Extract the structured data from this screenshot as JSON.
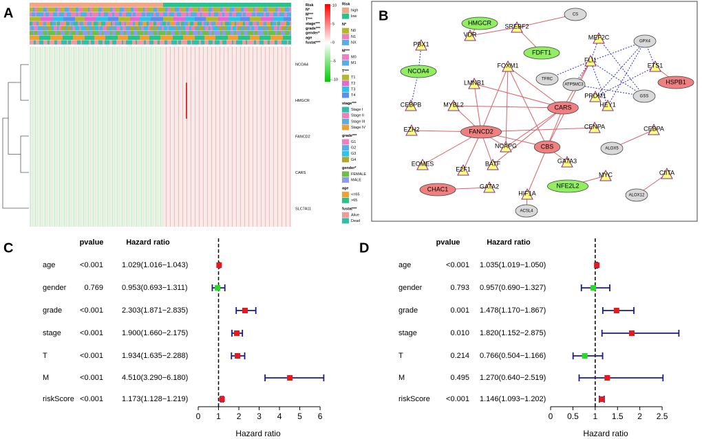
{
  "panel_labels": [
    "A",
    "B",
    "C",
    "D"
  ],
  "heatmap": {
    "annotation_rows": [
      "Risk",
      "N*",
      "M***",
      "T***",
      "stage***",
      "grade***",
      "gender*",
      "age",
      "fustat***"
    ],
    "genes": [
      "NCOA4",
      "HMGCR",
      "FANCD2",
      "CARS",
      "SLC7A11"
    ],
    "colorbar_ticks": [
      10,
      5,
      0,
      -5,
      -10
    ],
    "legend": [
      {
        "title": "Risk",
        "items": [
          {
            "label": "high",
            "color": "#f4a582"
          },
          {
            "label": "low",
            "color": "#29c28a"
          }
        ]
      },
      {
        "title": "N*",
        "items": [
          {
            "label": "N0",
            "color": "#b2b828"
          },
          {
            "label": "N1",
            "color": "#f07fbe"
          },
          {
            "label": "NX",
            "color": "#55aee8"
          }
        ]
      },
      {
        "title": "M***",
        "items": [
          {
            "label": "M0",
            "color": "#f07fbe"
          },
          {
            "label": "M1",
            "color": "#55aee8"
          }
        ]
      },
      {
        "title": "T***",
        "items": [
          {
            "label": "T1",
            "color": "#b2b828"
          },
          {
            "label": "T2",
            "color": "#e368d6"
          },
          {
            "label": "T3",
            "color": "#2bc3e8"
          },
          {
            "label": "T4",
            "color": "#5a8ff0"
          }
        ]
      },
      {
        "title": "stage***",
        "items": [
          {
            "label": "Stage I",
            "color": "#2dbfa8"
          },
          {
            "label": "Stage II",
            "color": "#f07fbe"
          },
          {
            "label": "Stage III",
            "color": "#55aee8"
          },
          {
            "label": "Stage IV",
            "color": "#f0a030"
          }
        ]
      },
      {
        "title": "grade***",
        "items": [
          {
            "label": "G1",
            "color": "#f07fbe"
          },
          {
            "label": "G2",
            "color": "#55aee8"
          },
          {
            "label": "G3",
            "color": "#2bc3e8"
          },
          {
            "label": "G4",
            "color": "#b2a828"
          }
        ]
      },
      {
        "title": "gender*",
        "items": [
          {
            "label": "FEMALE",
            "color": "#6dbf46"
          },
          {
            "label": "MALE",
            "color": "#8c9cf2"
          }
        ]
      },
      {
        "title": "age",
        "items": [
          {
            "label": "<=65",
            "color": "#f4a030"
          },
          {
            "label": ">65",
            "color": "#29c28a"
          }
        ]
      },
      {
        "title": "fustat***",
        "items": [
          {
            "label": "Alive",
            "color": "#f09a9a"
          },
          {
            "label": "Dead",
            "color": "#2dbfa8"
          }
        ]
      }
    ]
  },
  "network": {
    "nodes": [
      {
        "label": "CS",
        "shape": "ellipse",
        "color": "#d9d9d9"
      },
      {
        "label": "HMGCR",
        "shape": "ellipse",
        "color": "#90ee60"
      },
      {
        "label": "VDR",
        "shape": "triangle",
        "color": "#ffff80"
      },
      {
        "label": "SREBF2",
        "shape": "triangle",
        "color": "#ffff80"
      },
      {
        "label": "MEF2C",
        "shape": "triangle",
        "color": "#ffff80"
      },
      {
        "label": "GPX4",
        "shape": "ellipse",
        "color": "#d9d9d9"
      },
      {
        "label": "PBX1",
        "shape": "triangle",
        "color": "#ffff80"
      },
      {
        "label": "FDFT1",
        "shape": "ellipse",
        "color": "#90ee60"
      },
      {
        "label": "FLI1",
        "shape": "triangle",
        "color": "#ffff80"
      },
      {
        "label": "ETS1",
        "shape": "triangle",
        "color": "#ffff80"
      },
      {
        "label": "NCOA4",
        "shape": "ellipse",
        "color": "#90ee60"
      },
      {
        "label": "FOXM1",
        "shape": "triangle",
        "color": "#ffff80"
      },
      {
        "label": "LMNB1",
        "shape": "triangle",
        "color": "#ffff80"
      },
      {
        "label": "TFRC",
        "shape": "ellipse",
        "color": "#d9d9d9"
      },
      {
        "label": "ATP5MC3",
        "shape": "ellipse",
        "color": "#d9d9d9"
      },
      {
        "label": "HSPB1",
        "shape": "ellipse",
        "color": "#f08080"
      },
      {
        "label": "PRDM1",
        "shape": "triangle",
        "color": "#ffff80"
      },
      {
        "label": "GSS",
        "shape": "ellipse",
        "color": "#d9d9d9"
      },
      {
        "label": "HEY1",
        "shape": "triangle",
        "color": "#ffff80"
      },
      {
        "label": "CARS",
        "shape": "ellipse",
        "color": "#f08080"
      },
      {
        "label": "CEBPB",
        "shape": "triangle",
        "color": "#ffff80"
      },
      {
        "label": "MYBL2",
        "shape": "triangle",
        "color": "#ffff80"
      },
      {
        "label": "EZH2",
        "shape": "triangle",
        "color": "#ffff80"
      },
      {
        "label": "FANCD2",
        "shape": "ellipse",
        "color": "#f08080"
      },
      {
        "label": "CENPA",
        "shape": "triangle",
        "color": "#ffff80"
      },
      {
        "label": "CEBPA",
        "shape": "triangle",
        "color": "#ffff80"
      },
      {
        "label": "CBS",
        "shape": "ellipse",
        "color": "#f08080"
      },
      {
        "label": "NCAPG",
        "shape": "triangle",
        "color": "#ffff80"
      },
      {
        "label": "ALOX5",
        "shape": "ellipse",
        "color": "#d9d9d9"
      },
      {
        "label": "GATA3",
        "shape": "triangle",
        "color": "#ffff80"
      },
      {
        "label": "EOMES",
        "shape": "triangle",
        "color": "#ffff80"
      },
      {
        "label": "BATF",
        "shape": "triangle",
        "color": "#ffff80"
      },
      {
        "label": "E2F1",
        "shape": "triangle",
        "color": "#ffff80"
      },
      {
        "label": "MYC",
        "shape": "triangle",
        "color": "#ffff80"
      },
      {
        "label": "CIITA",
        "shape": "triangle",
        "color": "#ffff80"
      },
      {
        "label": "NFE2L2",
        "shape": "ellipse",
        "color": "#90ee60"
      },
      {
        "label": "CHAC1",
        "shape": "ellipse",
        "color": "#f08080"
      },
      {
        "label": "GATA2",
        "shape": "triangle",
        "color": "#ffff80"
      },
      {
        "label": "HIF1A",
        "shape": "triangle",
        "color": "#ffff80"
      },
      {
        "label": "ALOX12",
        "shape": "ellipse",
        "color": "#d9d9d9"
      },
      {
        "label": "ACSL4",
        "shape": "ellipse",
        "color": "#d9d9d9"
      }
    ]
  },
  "chart_data": [
    {
      "type": "forest",
      "columns": [
        "pvalue",
        "Hazard ratio"
      ],
      "xlabel": "Hazard ratio",
      "categories": [
        "age",
        "gender",
        "grade",
        "stage",
        "T",
        "M",
        "riskScore"
      ],
      "pvalues": [
        "<0.001",
        "0.769",
        "<0.001",
        "<0.001",
        "<0.001",
        "<0.001",
        "<0.001"
      ],
      "values": [
        1.029,
        0.953,
        2.303,
        1.9,
        1.934,
        4.51,
        1.173
      ],
      "lower": [
        1.016,
        0.693,
        1.871,
        1.66,
        1.635,
        3.29,
        1.128
      ],
      "upper": [
        1.043,
        1.311,
        2.835,
        2.175,
        2.288,
        6.18,
        1.219
      ],
      "value_labels": [
        "1.029(1.016−1.043)",
        "0.953(0.693−1.311)",
        "2.303(1.871−2.835)",
        "1.900(1.660−2.175)",
        "1.934(1.635−2.288)",
        "4.510(3.290−6.180)",
        "1.173(1.128−1.219)"
      ],
      "point_colors": [
        "#e41a1c",
        "#22dd22",
        "#e41a1c",
        "#e41a1c",
        "#e41a1c",
        "#e41a1c",
        "#e41a1c"
      ],
      "whisker_color": "#1a1a8c",
      "refline": 1,
      "xlim": [
        0,
        6.2
      ],
      "xticks": [
        0,
        1,
        2,
        3,
        4,
        5,
        6
      ]
    },
    {
      "type": "forest",
      "columns": [
        "pvalue",
        "Hazard ratio"
      ],
      "xlabel": "Hazard ratio",
      "categories": [
        "age",
        "gender",
        "grade",
        "stage",
        "T",
        "M",
        "riskScore"
      ],
      "pvalues": [
        "<0.001",
        "0.793",
        "0.001",
        "0.010",
        "0.214",
        "0.495",
        "<0.001"
      ],
      "values": [
        1.035,
        0.957,
        1.478,
        1.82,
        0.766,
        1.27,
        1.146
      ],
      "lower": [
        1.019,
        0.69,
        1.17,
        1.152,
        0.504,
        0.64,
        1.093
      ],
      "upper": [
        1.05,
        1.327,
        1.867,
        2.875,
        1.166,
        2.519,
        1.202
      ],
      "value_labels": [
        "1.035(1.019−1.050)",
        "0.957(0.690−1.327)",
        "1.478(1.170−1.867)",
        "1.820(1.152−2.875)",
        "0.766(0.504−1.166)",
        "1.270(0.640−2.519)",
        "1.146(1.093−1.202)"
      ],
      "point_colors": [
        "#e41a1c",
        "#22dd22",
        "#e41a1c",
        "#e41a1c",
        "#22dd22",
        "#e41a1c",
        "#e41a1c"
      ],
      "whisker_color": "#1a1a8c",
      "refline": 1,
      "xlim": [
        0,
        2.9
      ],
      "xticks": [
        0,
        0.5,
        1,
        1.5,
        2,
        2.5
      ]
    }
  ]
}
